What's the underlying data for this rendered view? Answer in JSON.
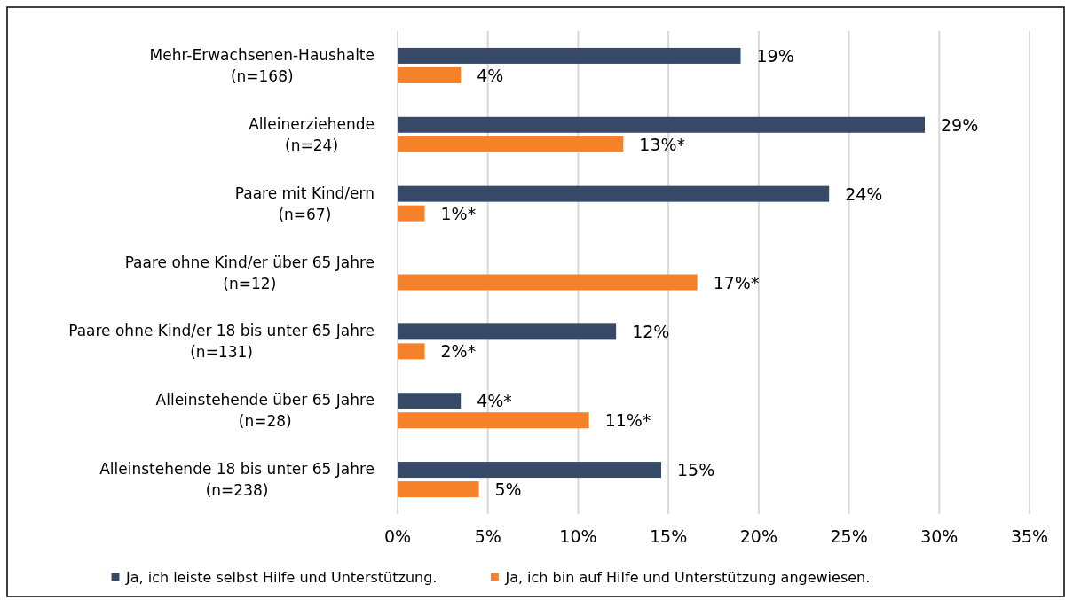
{
  "chart_data": {
    "type": "bar",
    "orientation": "horizontal",
    "categories": [
      "Mehr-Erwachsenen-Haushalte\n(n=168)",
      "Alleinerziehende\n(n=24)",
      "Paare mit Kind/ern\n(n=67)",
      "Paare ohne Kind/er über 65 Jahre\n(n=12)",
      "Paare ohne Kind/er 18 bis unter 65 Jahre\n(n=131)",
      "Alleinstehende über 65 Jahre\n(n=28)",
      "Alleinstehende 18 bis unter 65 Jahre\n(n=238)"
    ],
    "series": [
      {
        "name": "Ja, ich leiste selbst Hilfe und Unterstützung.",
        "color": "#364a68",
        "values": [
          19.0,
          29.2,
          23.9,
          null,
          12.1,
          3.5,
          14.6
        ],
        "value_labels": [
          "19%",
          "29%",
          "24%",
          null,
          "12%",
          "4%*",
          "15%"
        ]
      },
      {
        "name": "Ja, ich bin auf Hilfe und Unterstützung angewiesen.",
        "color": "#f5822a",
        "values": [
          3.5,
          12.5,
          1.5,
          16.6,
          1.5,
          10.6,
          4.5
        ],
        "value_labels": [
          "4%",
          "13%*",
          "1%*",
          "17%*",
          "2%*",
          "11%*",
          "5%"
        ]
      }
    ],
    "xlim": [
      0,
      35
    ],
    "xticks": [
      {
        "value": 0,
        "label": "0%"
      },
      {
        "value": 5,
        "label": "5%"
      },
      {
        "value": 10,
        "label": "10%"
      },
      {
        "value": 15,
        "label": "15%"
      },
      {
        "value": 20,
        "label": "20%"
      },
      {
        "value": 25,
        "label": "25%"
      },
      {
        "value": 30,
        "label": "30%"
      },
      {
        "value": 35,
        "label": "35%"
      }
    ],
    "grid": "x",
    "legend": "bottom",
    "marker": "square"
  }
}
